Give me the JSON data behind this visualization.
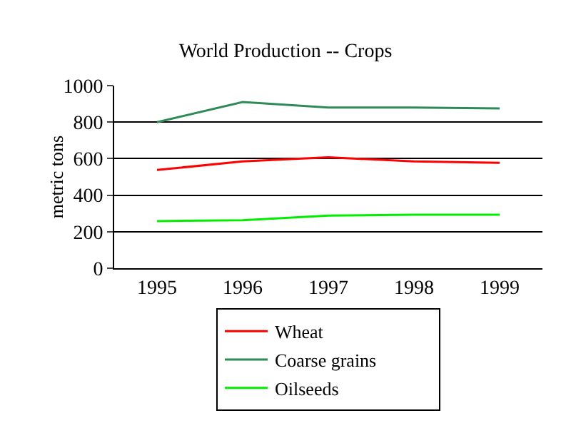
{
  "chart_data": {
    "type": "line",
    "title": "World Production -- Crops",
    "ylabel": "metric tons",
    "categories": [
      "1995",
      "1996",
      "1997",
      "1998",
      "1999"
    ],
    "series": [
      {
        "name": "Wheat",
        "color": "#ff0000",
        "values": [
          538,
          585,
          607,
          585,
          577
        ]
      },
      {
        "name": "Coarse grains",
        "color": "#2e8b57",
        "values": [
          800,
          910,
          880,
          880,
          875
        ]
      },
      {
        "name": "Oilseeds",
        "color": "#00ee00",
        "values": [
          258,
          263,
          288,
          293,
          293
        ]
      }
    ],
    "ylim": [
      0,
      1000
    ],
    "yticks": [
      0,
      200,
      400,
      600,
      800,
      1000
    ],
    "grid": "y",
    "legend": "bottom",
    "marker": "none",
    "line_style": "solid"
  }
}
